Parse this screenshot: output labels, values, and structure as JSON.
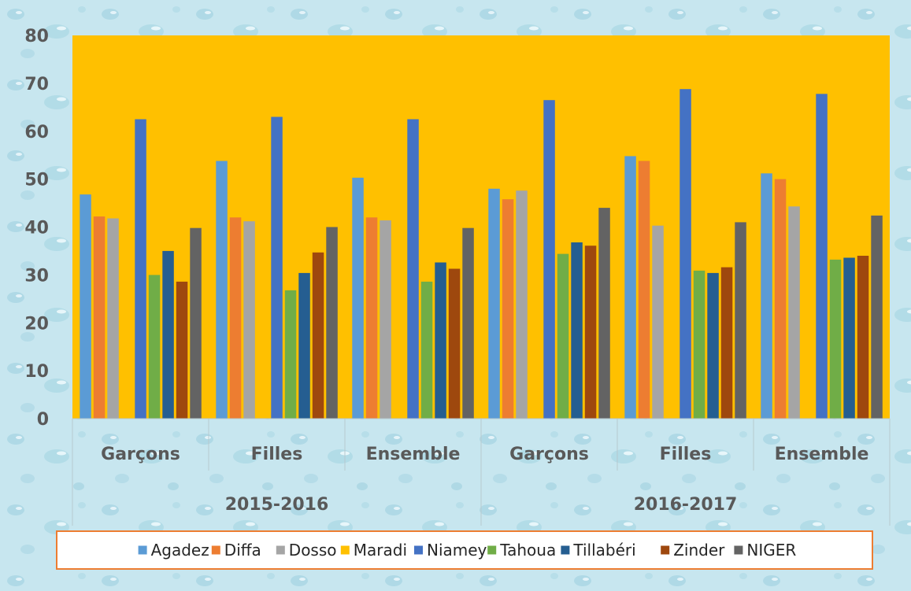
{
  "colors": {
    "background": "#c7e6ef",
    "plot_area": "#ffc000",
    "axis_text": "#595959",
    "legend_border": "#ed7d31"
  },
  "chart_data": {
    "type": "bar",
    "title": "",
    "xlabel": "",
    "ylabel": "",
    "ylim": [
      0,
      80
    ],
    "yticks": [
      0,
      10,
      20,
      30,
      40,
      50,
      60,
      70,
      80
    ],
    "categories": [
      "Garçons",
      "Filles",
      "Ensemble",
      "Garçons",
      "Filles",
      "Ensemble"
    ],
    "groups": [
      {
        "label": "2015-2016",
        "span": [
          0,
          2
        ]
      },
      {
        "label": "2016-2017",
        "span": [
          3,
          5
        ]
      }
    ],
    "legend_position": "bottom",
    "grid": false,
    "series": [
      {
        "name": "Agadez",
        "color": "#5b9bd5",
        "values": [
          46.8,
          53.8,
          50.3,
          48.0,
          54.8,
          51.2
        ]
      },
      {
        "name": "Diffa",
        "color": "#ed7d31",
        "values": [
          42.2,
          42.0,
          42.0,
          45.8,
          53.8,
          50.0
        ]
      },
      {
        "name": "Dosso",
        "color": "#a5a5a5",
        "values": [
          41.8,
          41.2,
          41.4,
          47.6,
          40.3,
          44.3
        ]
      },
      {
        "name": "Maradi",
        "color": "#ffc000",
        "values": [
          0,
          0,
          0,
          0,
          0,
          0
        ]
      },
      {
        "name": "Niamey",
        "color": "#4472c4",
        "values": [
          62.5,
          63.0,
          62.5,
          66.5,
          68.8,
          67.8
        ]
      },
      {
        "name": "Tahoua",
        "color": "#70ad47",
        "values": [
          30.0,
          26.8,
          28.6,
          34.4,
          30.9,
          33.2
        ]
      },
      {
        "name": "Tillabéri",
        "color": "#255e91",
        "values": [
          35.0,
          30.4,
          32.6,
          36.8,
          30.4,
          33.6
        ]
      },
      {
        "name": "Zinder",
        "color": "#9e480e",
        "values": [
          28.6,
          34.7,
          31.3,
          36.1,
          31.6,
          34.0
        ]
      },
      {
        "name": "NIGER",
        "color": "#636363",
        "values": [
          39.8,
          40.0,
          39.8,
          44.0,
          41.0,
          42.4
        ]
      }
    ]
  }
}
